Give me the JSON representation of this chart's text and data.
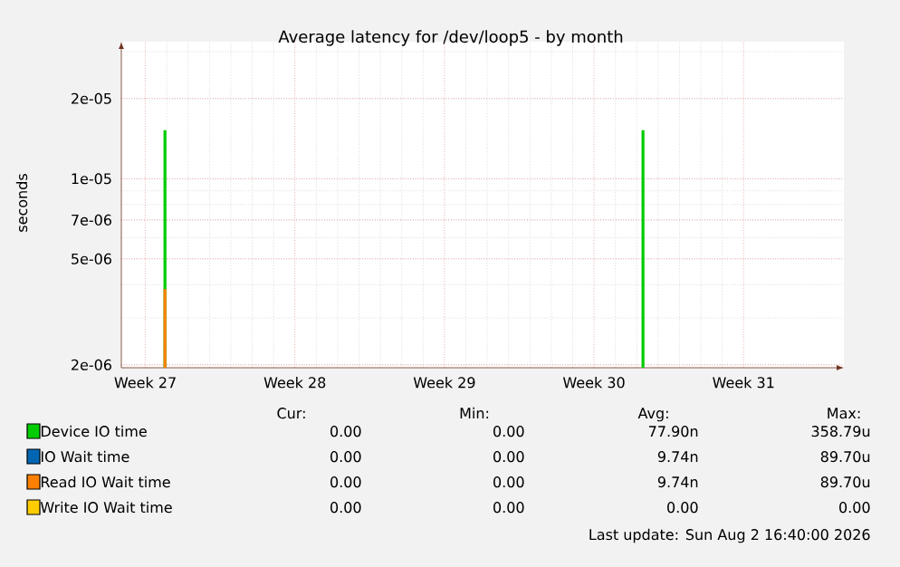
{
  "chart_data": {
    "type": "bar",
    "title": "Average latency for /dev/loop5 - by month",
    "ylabel": "seconds",
    "log": "y",
    "grid": true,
    "legend": "bottom left",
    "xlim": [
      "2026-06-29T21:00",
      "2026-08-02T16:40"
    ],
    "x": [
      "2026-07-01T22:00",
      "2026-07-24T07:00"
    ],
    "ylim": [
      1.95e-06,
      3.27e-05
    ],
    "xticks": [
      {
        "value": "2026-07-01",
        "label": "Week 27"
      },
      {
        "value": "2026-07-08",
        "label": "Week 28"
      },
      {
        "value": "2026-07-15",
        "label": "Week 29"
      },
      {
        "value": "2026-07-22",
        "label": "Week 30"
      },
      {
        "value": "2026-07-29",
        "label": "Week 31"
      }
    ],
    "yticks": [
      {
        "value": 2e-06,
        "label": "2e-06"
      },
      {
        "value": 5e-06,
        "label": "5e-06"
      },
      {
        "value": 7e-06,
        "label": "7e-06"
      },
      {
        "value": 1e-05,
        "label": "1e-05"
      },
      {
        "value": 2e-05,
        "label": "2e-05"
      }
    ],
    "series": [
      {
        "name": "Device IO time",
        "color": "#00cc00",
        "values": [
          1.52e-05,
          1.52e-05
        ]
      },
      {
        "name": "IO Wait time",
        "color": "#0066b3",
        "values": [
          null,
          null
        ]
      },
      {
        "name": "Read IO Wait time",
        "color": "#ff8000",
        "values": [
          3.85e-06,
          null
        ]
      },
      {
        "name": "Write IO Wait time",
        "color": "#ffcc00",
        "values": [
          null,
          null
        ]
      }
    ],
    "annotations": [
      "Cur:",
      "Min:",
      "Avg:",
      "Max:",
      "0.00",
      "0.00",
      "77.90n",
      "358.79u",
      "0.00",
      "0.00",
      "9.74n",
      "89.70u",
      "0.00",
      "0.00",
      "9.74n",
      "89.70u",
      "0.00",
      "0.00",
      "0.00",
      "0.00",
      "Last update: Sun Aug  2 16:40:00 2026"
    ]
  }
}
